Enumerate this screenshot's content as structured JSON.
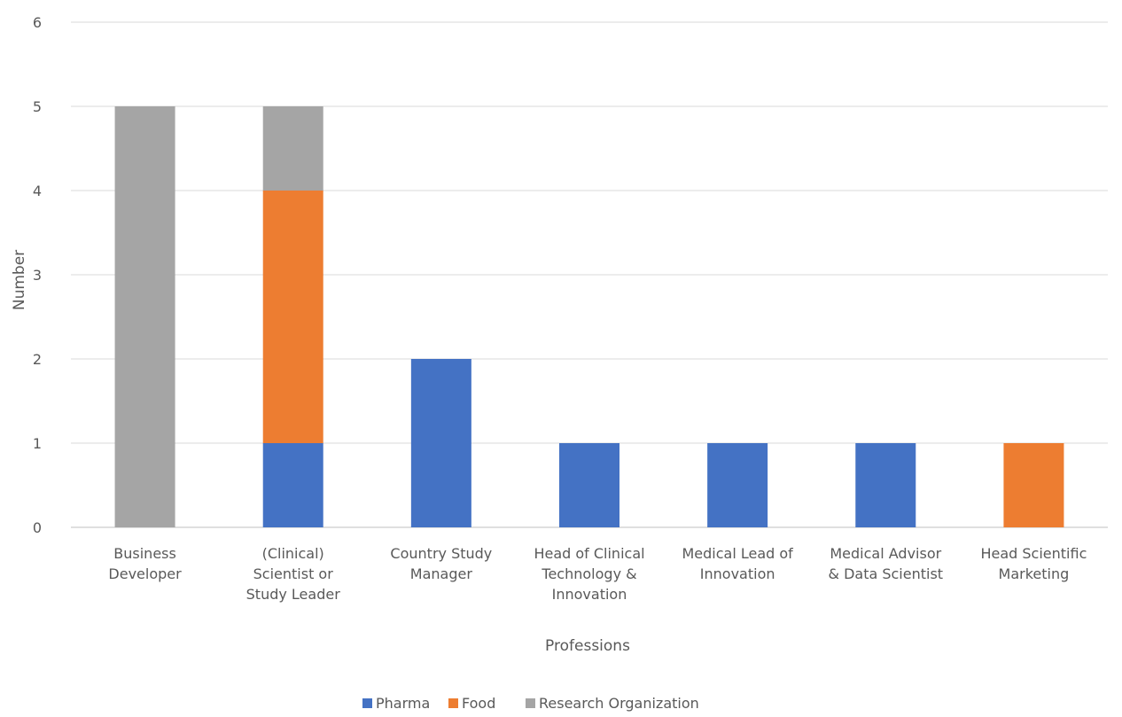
{
  "chart_data": {
    "type": "bar",
    "stacked": true,
    "categories": [
      [
        "Business",
        "Developer"
      ],
      [
        "(Clinical)",
        "Scientist or",
        "Study Leader"
      ],
      [
        "Country Study",
        "Manager"
      ],
      [
        "Head of Clinical",
        "Technology &",
        "Innovation"
      ],
      [
        "Medical Lead of",
        "Innovation"
      ],
      [
        "Medical Advisor",
        "& Data Scientist"
      ],
      [
        "Head Scientific",
        "Marketing"
      ]
    ],
    "series": [
      {
        "name": "Pharma",
        "values": [
          0,
          1,
          2,
          1,
          1,
          1,
          0
        ]
      },
      {
        "name": "Food",
        "values": [
          0,
          3,
          0,
          0,
          0,
          0,
          1
        ]
      },
      {
        "name": "Research Organization",
        "values": [
          5,
          1,
          0,
          0,
          0,
          0,
          0
        ]
      }
    ],
    "title": "",
    "xlabel": "Professions",
    "ylabel": "Number",
    "ylim": [
      0,
      6
    ],
    "yticks": [
      0,
      1,
      2,
      3,
      4,
      5,
      6
    ],
    "grid": true,
    "legend_position": "bottom",
    "colors": {
      "Pharma": "#4472C4",
      "Food": "#ED7D31",
      "Research Organization": "#A5A5A5"
    }
  }
}
